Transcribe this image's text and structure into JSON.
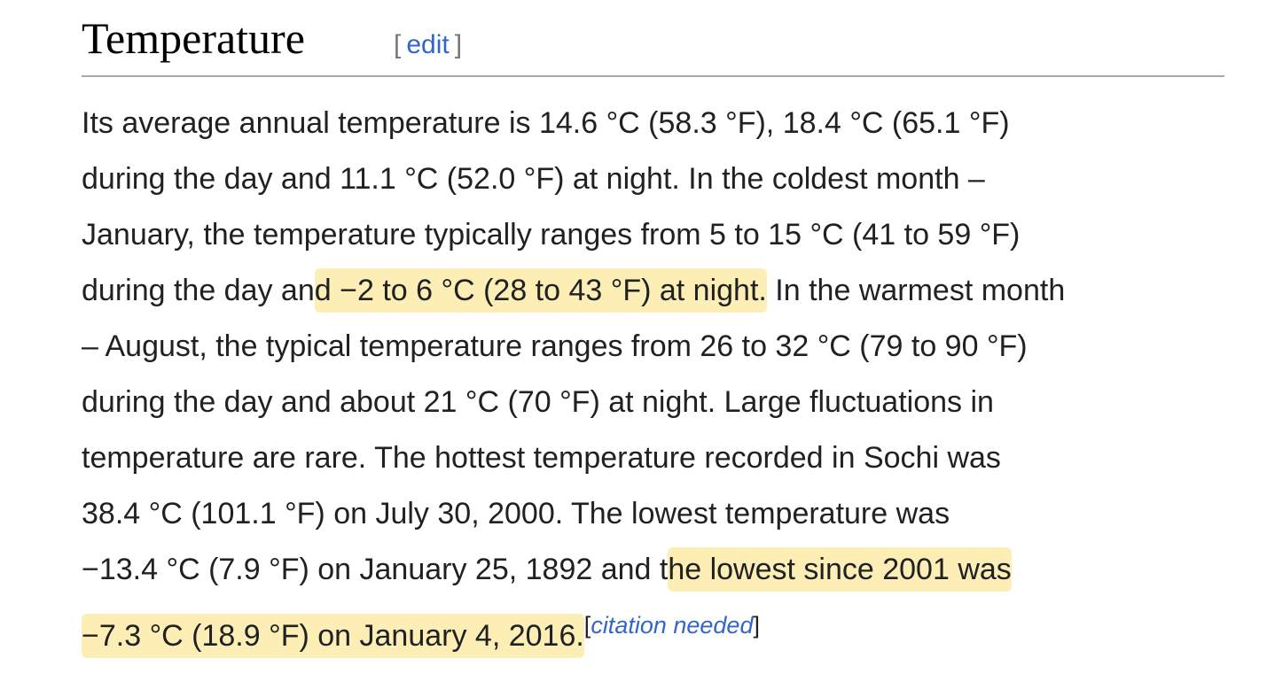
{
  "heading": {
    "title": "Temperature",
    "edit": {
      "open": "[",
      "text": "edit",
      "close": "]"
    }
  },
  "paragraph": {
    "lines": [
      [
        {
          "text": "Its average annual temperature is 14.6 °C (58.3 °F), 18.4 °C (65.1 °F)"
        }
      ],
      [
        {
          "text": "during the day and 11.1 °C (52.0 °F) at night. In the coldest month –"
        }
      ],
      [
        {
          "text": "January, the temperature typically ranges from 5 to 15 °C (41 to 59 °F)"
        }
      ],
      [
        {
          "text": "during the day an"
        },
        {
          "text": "d −2 to 6 °C (28 to 43 °F) at night.",
          "highlight": true
        },
        {
          "text": " In the warmest month"
        }
      ],
      [
        {
          "text": "– August, the typical temperature ranges from 26 to 32 °C (79 to 90 °F)"
        }
      ],
      [
        {
          "text": "during the day and about 21 °C (70 °F) at night. Large fluctuations in"
        }
      ],
      [
        {
          "text": "temperature are rare. The hottest temperature recorded in Sochi was"
        }
      ],
      [
        {
          "text": "38.4 °C (101.1 °F) on July 30, 2000. The lowest temperature was"
        }
      ],
      [
        {
          "text": "−13.4 °C (7.9 °F) on January 25, 1892 and t"
        },
        {
          "text": "he lowest since 2001 was",
          "highlight": true
        }
      ],
      [
        {
          "text": "−7.3 °C (18.9 °F) on January 4, 2016.",
          "highlight": true
        }
      ]
    ],
    "citation": {
      "open": "[",
      "text": "citation needed",
      "close": "]"
    }
  }
}
